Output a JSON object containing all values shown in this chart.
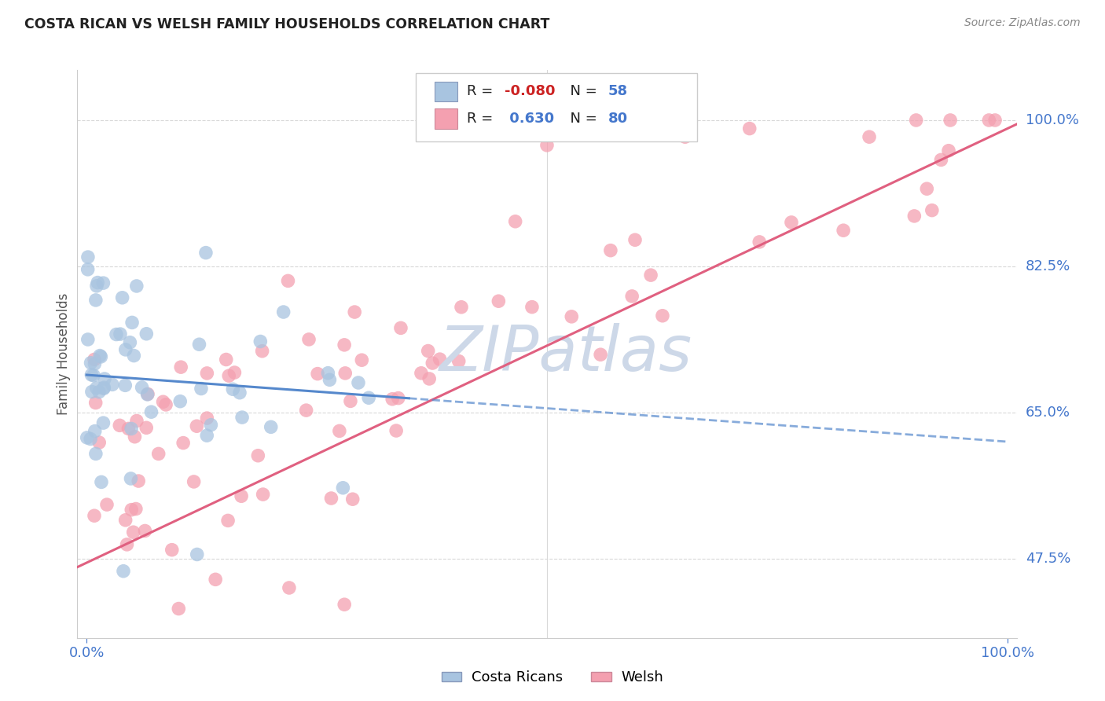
{
  "title": "COSTA RICAN VS WELSH FAMILY HOUSEHOLDS CORRELATION CHART",
  "source": "Source: ZipAtlas.com",
  "ylabel": "Family Households",
  "yticks_labels": [
    "100.0%",
    "82.5%",
    "65.0%",
    "47.5%"
  ],
  "ytick_vals": [
    1.0,
    0.825,
    0.65,
    0.475
  ],
  "ylim": [
    0.38,
    1.06
  ],
  "xlim": [
    -0.01,
    1.01
  ],
  "legend_cr": "Costa Ricans",
  "legend_welsh": "Welsh",
  "cr_color": "#a8c4e0",
  "welsh_color": "#f4a0b0",
  "cr_line_color": "#5588cc",
  "welsh_line_color": "#e06080",
  "cr_R": -0.08,
  "cr_N": 58,
  "welsh_R": 0.63,
  "welsh_N": 80,
  "watermark": "ZIPatlas",
  "watermark_color": "#cdd8e8",
  "background_color": "#ffffff",
  "grid_color": "#d8d8d8"
}
